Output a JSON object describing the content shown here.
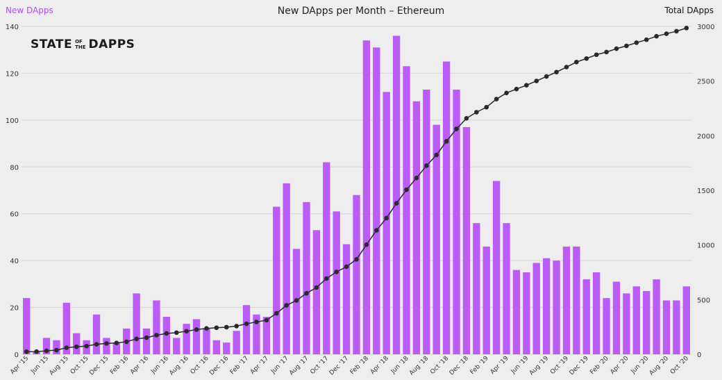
{
  "header": {
    "title": "New DApps per Month – Ethereum",
    "left_series_label": "New DApps",
    "right_series_label": "Total DApps"
  },
  "logo": {
    "part1": "STATE",
    "small_top": "OF",
    "small_bottom": "THE",
    "part2": "DAPPS"
  },
  "colors": {
    "bar": "#bb5cf7",
    "line": "#2a2a2a",
    "background": "#eeeeee",
    "grid": "#d6d6d6",
    "left_label": "#b14cf5"
  },
  "chart_data": {
    "type": "bar+line",
    "categories": [
      "Apr '15",
      "May '15",
      "Jun '15",
      "Jul '15",
      "Aug '15",
      "Sep '15",
      "Oct '15",
      "Nov '15",
      "Dec '15",
      "Jan '16",
      "Feb '16",
      "Mar '16",
      "Apr '16",
      "May '16",
      "Jun '16",
      "Jul '16",
      "Aug '16",
      "Sep '16",
      "Oct '16",
      "Nov '16",
      "Dec '16",
      "Jan '17",
      "Feb '17",
      "Mar '17",
      "Apr '17",
      "May '17",
      "Jun '17",
      "Jul '17",
      "Aug '17",
      "Sep '17",
      "Oct '17",
      "Nov '17",
      "Dec '17",
      "Jan '18",
      "Feb '18",
      "Mar '18",
      "Apr '18",
      "May '18",
      "Jun '18",
      "Jul '18",
      "Aug '18",
      "Sep '18",
      "Oct '18",
      "Nov '18",
      "Dec '18",
      "Jan '19",
      "Feb '19",
      "Mar '19",
      "Apr '19",
      "May '19",
      "Jun '19",
      "Jul '19",
      "Aug '19",
      "Sep '19",
      "Oct '19",
      "Nov '19",
      "Dec '19",
      "Jan '20",
      "Feb '20",
      "Mar '20",
      "Apr '20",
      "May '20",
      "Jun '20",
      "Jul '20",
      "Aug '20",
      "Sep '20",
      "Oct '20"
    ],
    "x_tick_labels": [
      "Apr '15",
      "Jun '15",
      "Aug '15",
      "Oct '15",
      "Dec '15",
      "Feb '16",
      "Apr '16",
      "Jun '16",
      "Aug '16",
      "Oct '16",
      "Dec '16",
      "Feb '17",
      "Apr '17",
      "Jun '17",
      "Aug '17",
      "Oct '17",
      "Dec '17",
      "Feb '18",
      "Apr '18",
      "Jun '18",
      "Aug '18",
      "Oct '18",
      "Dec '18",
      "Feb '19",
      "Apr '19",
      "Jun '19",
      "Aug '19",
      "Oct '19",
      "Dec '19",
      "Feb '20",
      "Apr '20",
      "Jun '20",
      "Aug '20",
      "Oct '20"
    ],
    "series": [
      {
        "name": "New DApps",
        "axis": "left",
        "type": "bar",
        "values": [
          24,
          1,
          7,
          6,
          22,
          9,
          6,
          17,
          7,
          5,
          11,
          26,
          11,
          23,
          16,
          7,
          13,
          15,
          11,
          6,
          5,
          10,
          21,
          17,
          16,
          63,
          73,
          45,
          65,
          53,
          82,
          61,
          47,
          68,
          134,
          131,
          112,
          136,
          123,
          108,
          113,
          98,
          125,
          113,
          97,
          56,
          46,
          74,
          56,
          36,
          35,
          39,
          41,
          40,
          46,
          46,
          32,
          35,
          24,
          31,
          26,
          29,
          27,
          32,
          23,
          23,
          29
        ]
      },
      {
        "name": "Total DApps",
        "axis": "right",
        "type": "line",
        "values": [
          24,
          25,
          32,
          38,
          60,
          69,
          75,
          92,
          99,
          104,
          115,
          141,
          152,
          175,
          191,
          198,
          211,
          226,
          237,
          243,
          248,
          258,
          279,
          296,
          312,
          375,
          448,
          493,
          558,
          611,
          693,
          754,
          801,
          869,
          1003,
          1134,
          1246,
          1382,
          1505,
          1613,
          1726,
          1824,
          1949,
          2062,
          2159,
          2215,
          2261,
          2335,
          2391,
          2427,
          2462,
          2501,
          2542,
          2582,
          2628,
          2674,
          2706,
          2741,
          2765,
          2796,
          2822,
          2851,
          2878,
          2910,
          2933,
          2956,
          2985
        ]
      }
    ],
    "y_left": {
      "range": [
        0,
        140
      ],
      "ticks": [
        0,
        20,
        40,
        60,
        80,
        100,
        120,
        140
      ]
    },
    "y_right": {
      "range": [
        0,
        3000
      ],
      "ticks": [
        0,
        500,
        1000,
        1500,
        2000,
        2500,
        3000
      ]
    },
    "grid": true
  }
}
